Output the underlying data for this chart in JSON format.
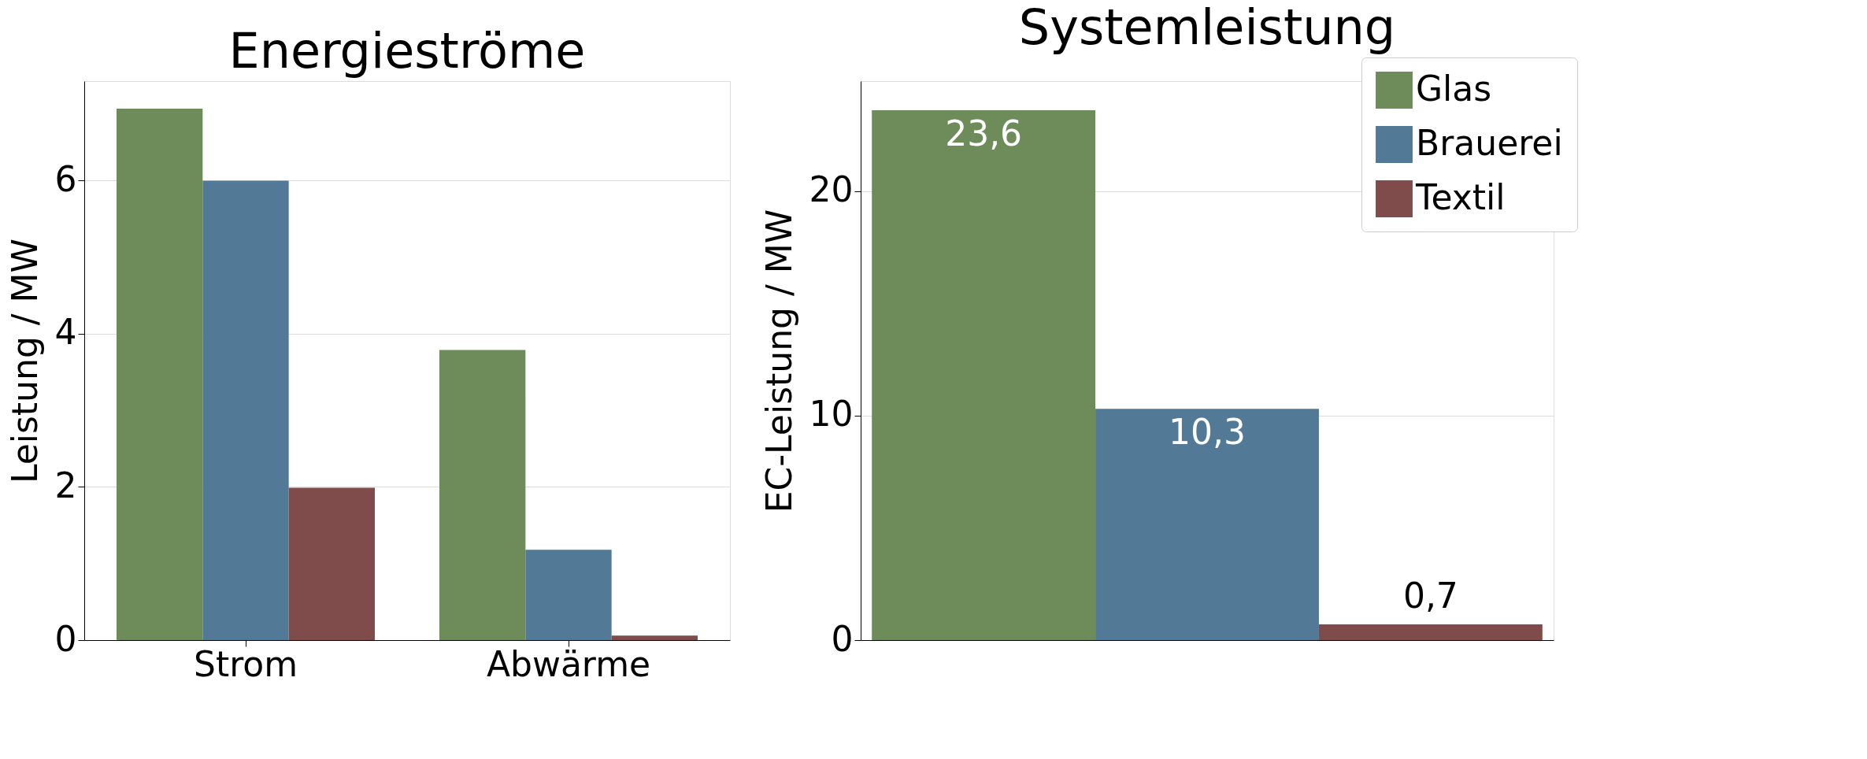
{
  "chart_data": [
    {
      "type": "bar",
      "title": "Energieströme",
      "ylabel": "Leistung / MW",
      "categories": [
        "Strom",
        "Abwärme"
      ],
      "series": [
        {
          "color": "#6e8b5a",
          "values": [
            6.94,
            3.79
          ]
        },
        {
          "color": "#527a96",
          "values": [
            6.0,
            1.18
          ]
        },
        {
          "color": "#7f4b4b",
          "values": [
            1.99,
            0.06
          ]
        }
      ],
      "ylim": [
        0,
        7.3
      ],
      "yticks": [
        0,
        2,
        4,
        6
      ],
      "grid": "y",
      "legend": false
    },
    {
      "type": "bar",
      "title": "Systemleistung",
      "ylabel": "EC-Leistung / MW",
      "categories": [
        null,
        null,
        null
      ],
      "series": [
        {
          "name": "Glas",
          "color": "#6e8b5a",
          "values": [
            23.6,
            null,
            null
          ],
          "value_labels": [
            "23,6",
            null,
            null
          ]
        },
        {
          "name": "Brauerei",
          "color": "#527a96",
          "values": [
            null,
            10.3,
            null
          ],
          "value_labels": [
            null,
            "10,3",
            null
          ]
        },
        {
          "name": "Textil",
          "color": "#7f4b4b",
          "values": [
            null,
            null,
            0.7
          ],
          "value_labels": [
            null,
            null,
            "0,7"
          ]
        }
      ],
      "ylim": [
        0,
        24.9
      ],
      "yticks": [
        0,
        10,
        20
      ],
      "grid": "y",
      "legend": "top right",
      "tick_labels": "y"
    }
  ]
}
